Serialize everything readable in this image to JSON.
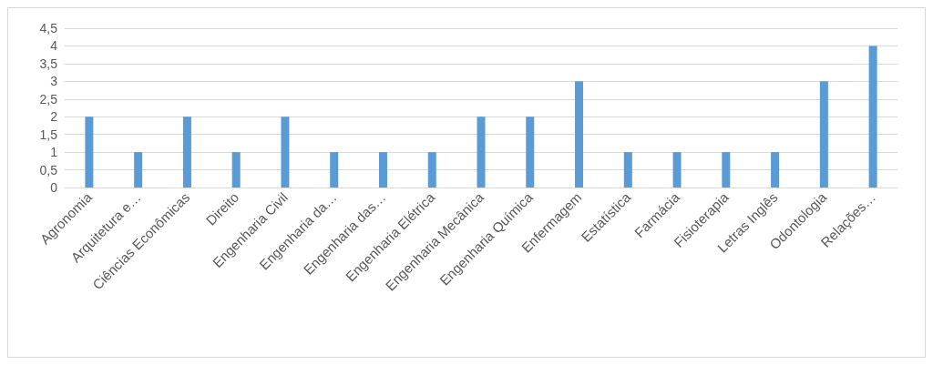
{
  "chart_data": {
    "type": "bar",
    "categories": [
      "Agronomia",
      "Arquitetura e…",
      "Ciências Econômicas",
      "Direito",
      "Engenharia Civil",
      "Engenharia da…",
      "Engenharia das…",
      "Engenharia Elétrica",
      "Engenharia Mecânica",
      "Engenharia Química",
      "Enfermagem",
      "Estatística",
      "Farmácia",
      "Fisioterapia",
      "Letras Inglês",
      "Odontologia",
      "Relações…"
    ],
    "values": [
      2,
      1,
      2,
      1,
      2,
      1,
      1,
      1,
      2,
      2,
      3,
      1,
      1,
      1,
      1,
      3,
      4
    ],
    "color": "#5b9bd5",
    "ylim": [
      0,
      4.5
    ],
    "yticks": [
      0,
      {
        "value": 0.5,
        "label": "0,5"
      },
      1,
      {
        "value": 1.5,
        "label": "1,5"
      },
      2,
      {
        "value": 2.5,
        "label": "2,5"
      },
      3,
      {
        "value": 3.5,
        "label": "3,5"
      },
      4,
      {
        "value": 4.5,
        "label": "4,5"
      }
    ],
    "grid": "y"
  }
}
